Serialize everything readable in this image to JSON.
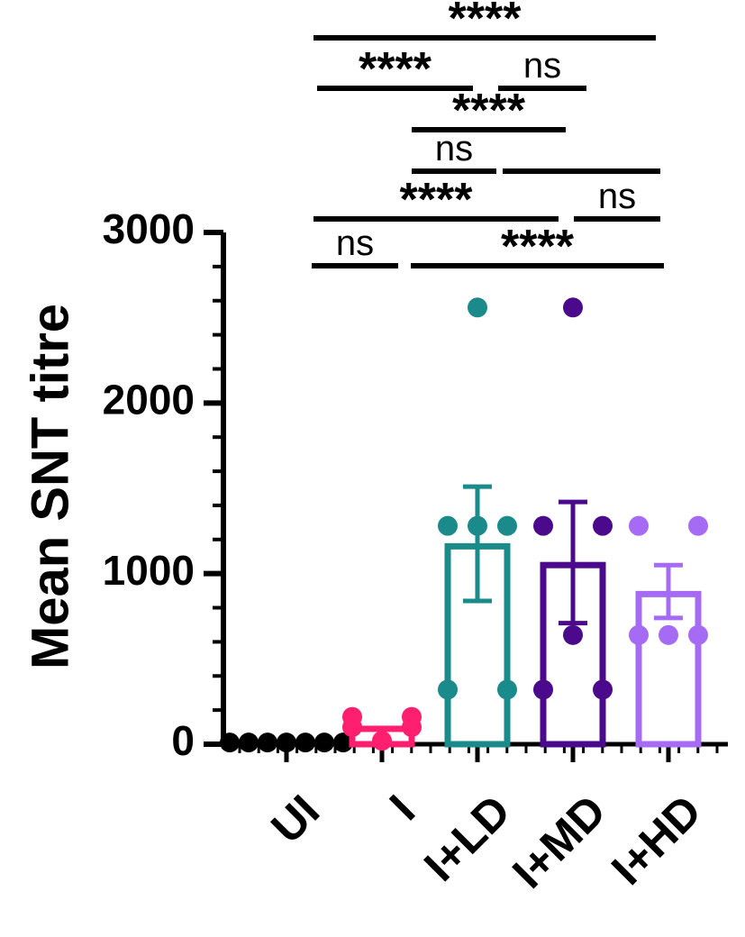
{
  "chart_data": {
    "type": "bar",
    "ylabel": "Mean SNT titre",
    "ylim": [
      0,
      3000
    ],
    "yticks": [
      0,
      1000,
      2000,
      3000
    ],
    "grid": false,
    "legend": "none",
    "categories": [
      "UI",
      "I",
      "I+LD",
      "I+MD",
      "I+HD"
    ],
    "groups": [
      {
        "name": "UI",
        "color": "#000000",
        "mean": 10,
        "error": [
          10,
          10
        ],
        "points": [
          10,
          10,
          10,
          10,
          10,
          10,
          10
        ]
      },
      {
        "name": "I",
        "color": "#ff1f6e",
        "mean": 90,
        "error": [
          90,
          90
        ],
        "points": [
          160,
          160,
          100,
          100,
          20
        ]
      },
      {
        "name": "I+LD",
        "color": "#1a8a8a",
        "mean": 1160,
        "error": [
          840,
          1510
        ],
        "points": [
          2560,
          1280,
          1280,
          1280,
          320,
          320
        ]
      },
      {
        "name": "I+MD",
        "color": "#4b0a8c",
        "mean": 1050,
        "error": [
          710,
          1420
        ],
        "points": [
          2560,
          1280,
          1280,
          640,
          320,
          320
        ]
      },
      {
        "name": "I+HD",
        "color": "#a56bf5",
        "mean": 880,
        "error": [
          740,
          1050
        ],
        "points": [
          1280,
          1280,
          640,
          640,
          640
        ]
      }
    ],
    "significance": [
      {
        "from": 0,
        "to": 4,
        "label": "****"
      },
      {
        "from": 0,
        "to": 2,
        "label": "****"
      },
      {
        "from": 2,
        "to": 3,
        "label": "ns"
      },
      {
        "from": 1,
        "to": 3,
        "label": "****"
      },
      {
        "from": 1,
        "to": 2,
        "label": "ns"
      },
      {
        "from": 2,
        "to": 4,
        "label": ""
      },
      {
        "from": 0,
        "to": 3,
        "label": "****"
      },
      {
        "from": 3,
        "to": 4,
        "label": "ns"
      },
      {
        "from": 0,
        "to": 1,
        "label": "ns"
      },
      {
        "from": 1,
        "to": 4,
        "label": "****"
      }
    ]
  }
}
